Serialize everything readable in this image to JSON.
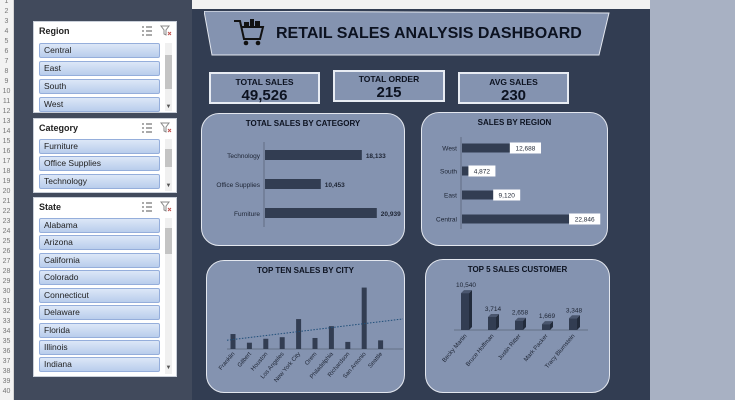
{
  "row_numbers": [
    "1",
    "2",
    "3",
    "4",
    "5",
    "6",
    "7",
    "8",
    "9",
    "10",
    "11",
    "12",
    "13",
    "14",
    "15",
    "16",
    "17",
    "18",
    "19",
    "20",
    "21",
    "22",
    "23",
    "24",
    "25",
    "26",
    "27",
    "28",
    "29",
    "30",
    "31",
    "32",
    "33",
    "34",
    "35",
    "36",
    "37",
    "38",
    "39",
    "40"
  ],
  "slicers": {
    "region": {
      "title": "Region",
      "items": [
        "Central",
        "East",
        "South",
        "West"
      ]
    },
    "category": {
      "title": "Category",
      "items": [
        "Furniture",
        "Office Supplies",
        "Technology"
      ]
    },
    "state": {
      "title": "State",
      "items": [
        "Alabama",
        "Arizona",
        "California",
        "Colorado",
        "Connecticut",
        "Delaware",
        "Florida",
        "Illinois",
        "Indiana"
      ]
    }
  },
  "header": {
    "title": "RETAIL SALES ANALYSIS DASHBOARD"
  },
  "kpis": [
    {
      "label": "TOTAL SALES",
      "value": "49,526"
    },
    {
      "label": "TOTAL ORDER",
      "value": "215"
    },
    {
      "label": "AVG SALES",
      "value": "230"
    }
  ],
  "colors": {
    "bar": "#323d52",
    "card": "#8493b0",
    "dashboard": "#323d52",
    "trend": "#1f4e79"
  },
  "chart_data": [
    {
      "id": "category",
      "type": "bar",
      "orientation": "horizontal",
      "title": "TOTAL SALES BY CATEGORY",
      "categories": [
        "Technology",
        "Office Supplies",
        "Furniture"
      ],
      "values": [
        18133,
        10453,
        20939
      ],
      "value_labels": [
        "18,133",
        "10,453",
        "20,939"
      ],
      "xlim": [
        0,
        26000
      ]
    },
    {
      "id": "region",
      "type": "bar",
      "orientation": "horizontal",
      "title": "SALES BY REGION",
      "categories": [
        "West",
        "South",
        "East",
        "Central"
      ],
      "values": [
        12688,
        4872,
        9120,
        22846
      ],
      "value_labels": [
        "12,688",
        "4,872",
        "9,120",
        "22,846"
      ],
      "xlim": [
        0,
        24000
      ]
    },
    {
      "id": "city",
      "type": "bar",
      "title": "TOP TEN SALES BY CITY",
      "categories": [
        "Franklin",
        "Gilbert",
        "Houston",
        "Los Angeles",
        "New York City",
        "Orem",
        "Philadelphia",
        "Richardson",
        "San Antonio",
        "Seattle"
      ],
      "values": [
        1900,
        800,
        1300,
        1500,
        3800,
        1400,
        2900,
        900,
        7800,
        1100
      ],
      "ylim": [
        0,
        8000
      ],
      "trendline": "linear"
    },
    {
      "id": "customer",
      "type": "bar",
      "title": "TOP 5 SALES CUSTOMER",
      "categories": [
        "Becky Martin",
        "Bruce Hoffman",
        "Justin Ritter",
        "Mark Packer",
        "Tracy Blumstein"
      ],
      "values": [
        10540,
        3714,
        2658,
        1669,
        3348
      ],
      "value_labels": [
        "10,540",
        "3,714",
        "2,658",
        "1,669",
        "3,348"
      ],
      "ylim": [
        0,
        12000
      ]
    }
  ]
}
